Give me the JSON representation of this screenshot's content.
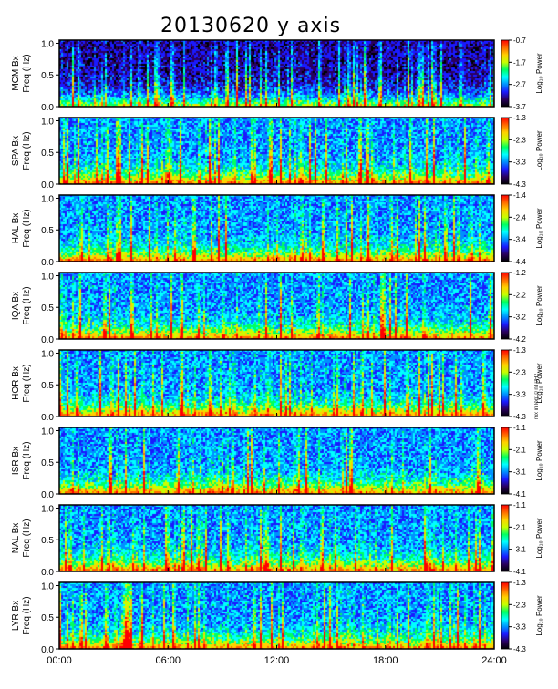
{
  "title": "20130620 y axis",
  "side_note": "mx in log10 nT²/Hz",
  "colors": {
    "panel_border": "#000000",
    "background": "#ffffff",
    "colormap": [
      "#000000",
      "#2a0060",
      "#1a1aff",
      "#0090ff",
      "#00ffff",
      "#00ff60",
      "#c8ff00",
      "#ffd000",
      "#ff6a00",
      "#ff0000"
    ]
  },
  "chart_data": {
    "type": "heatmap",
    "title": "20130620 y axis",
    "x": {
      "ticks": [
        "00:00",
        "06:00",
        "12:00",
        "18:00",
        "24:00"
      ],
      "range_hours": [
        0,
        24
      ]
    },
    "y": {
      "ticks": [
        "0.0",
        "0.5",
        "1.0"
      ],
      "range": [
        0,
        1.05
      ],
      "label": "Freq (Hz)"
    },
    "colorbar_label": "Log₁₀ Power",
    "panels": [
      {
        "station": "MCM Bx",
        "cb_ticks": [
          "-0.7",
          "-1.7",
          "-2.7",
          "-3.7"
        ],
        "cb_range": [
          -3.7,
          -0.7
        ]
      },
      {
        "station": "SPA Bx",
        "cb_ticks": [
          "-1.3",
          "-2.3",
          "-3.3",
          "-4.3"
        ],
        "cb_range": [
          -4.3,
          -1.3
        ]
      },
      {
        "station": "HAL Bx",
        "cb_ticks": [
          "-1.4",
          "-2.4",
          "-3.4",
          "-4.4"
        ],
        "cb_range": [
          -4.4,
          -1.4
        ]
      },
      {
        "station": "IQA Bx",
        "cb_ticks": [
          "-1.2",
          "-2.2",
          "-3.2",
          "-4.2"
        ],
        "cb_range": [
          -4.2,
          -1.2
        ]
      },
      {
        "station": "HOR Bx",
        "cb_ticks": [
          "-1.3",
          "-2.3",
          "-3.3",
          "-4.3"
        ],
        "cb_range": [
          -4.3,
          -1.3
        ]
      },
      {
        "station": "ISR Bx",
        "cb_ticks": [
          "-1.1",
          "-2.1",
          "-3.1",
          "-4.1"
        ],
        "cb_range": [
          -4.1,
          -1.1
        ]
      },
      {
        "station": "NAL Bx",
        "cb_ticks": [
          "-1.1",
          "-2.1",
          "-3.1",
          "-4.1"
        ],
        "cb_range": [
          -4.1,
          -1.1
        ]
      },
      {
        "station": "LYR Bx",
        "cb_ticks": [
          "-1.3",
          "-2.3",
          "-3.3",
          "-4.3"
        ],
        "cb_range": [
          -4.3,
          -1.3
        ]
      }
    ]
  }
}
